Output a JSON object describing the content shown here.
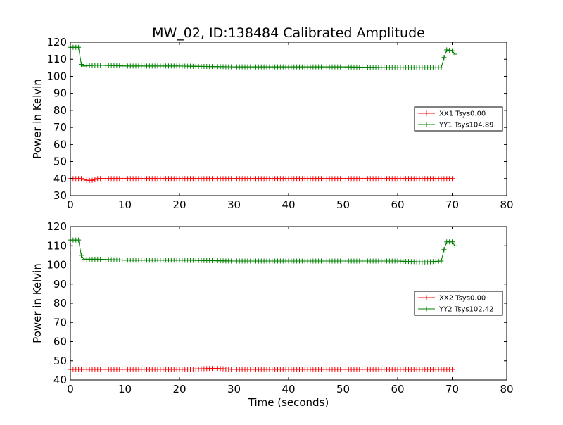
{
  "chart_data": [
    {
      "type": "line",
      "title": "MW_02, ID:138484 Calibrated Amplitude",
      "xlabel": "",
      "ylabel": "Power in Kelvin",
      "xlim": [
        0,
        80
      ],
      "ylim": [
        30,
        120
      ],
      "xticks": [
        0,
        10,
        20,
        30,
        40,
        50,
        60,
        70,
        80
      ],
      "yticks": [
        30,
        40,
        50,
        60,
        70,
        80,
        90,
        100,
        110,
        120
      ],
      "grid": false,
      "legend_position": "right",
      "marker": "+",
      "series": [
        {
          "name": "XX1 Tsys0.00",
          "color": "#ff0000",
          "x": [
            0,
            2,
            3,
            4,
            5,
            10,
            20,
            30,
            40,
            50,
            60,
            70
          ],
          "y": [
            40,
            40,
            39,
            39,
            40,
            40,
            40,
            40,
            40,
            40,
            40,
            40
          ]
        },
        {
          "name": "YY1 Tsys104.89",
          "color": "#008000",
          "x": [
            0,
            1.5,
            2,
            2.5,
            5,
            10,
            20,
            30,
            40,
            50,
            60,
            65,
            68,
            68.5,
            69,
            70,
            70.5
          ],
          "y": [
            117,
            117,
            107,
            106,
            106.5,
            106,
            106,
            105.5,
            105.5,
            105.5,
            105,
            105,
            105,
            111,
            115.5,
            115,
            113
          ]
        }
      ]
    },
    {
      "type": "line",
      "title": "",
      "xlabel": "Time (seconds)",
      "ylabel": "Power in Kelvin",
      "xlim": [
        0,
        80
      ],
      "ylim": [
        40,
        120
      ],
      "xticks": [
        0,
        10,
        20,
        30,
        40,
        50,
        60,
        70,
        80
      ],
      "yticks": [
        40,
        50,
        60,
        70,
        80,
        90,
        100,
        110,
        120
      ],
      "grid": false,
      "legend_position": "right",
      "marker": "+",
      "series": [
        {
          "name": "XX2 Tsys0.00",
          "color": "#ff0000",
          "x": [
            0,
            10,
            20,
            26,
            27,
            30,
            40,
            50,
            60,
            70
          ],
          "y": [
            45.5,
            45.5,
            45.5,
            46,
            46,
            45.5,
            45.5,
            45.5,
            45.5,
            45.5
          ]
        },
        {
          "name": "YY2 Tsys102.42",
          "color": "#008000",
          "x": [
            0,
            1.5,
            2,
            2.5,
            5,
            10,
            20,
            30,
            40,
            50,
            60,
            65,
            68,
            68.5,
            69,
            70,
            70.5
          ],
          "y": [
            113,
            113,
            105,
            103,
            103,
            102.5,
            102.5,
            102,
            102,
            102,
            102,
            101.5,
            102,
            108,
            112,
            112,
            110
          ]
        }
      ]
    }
  ]
}
